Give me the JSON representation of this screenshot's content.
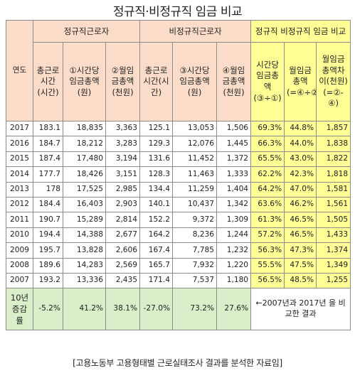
{
  "title": "정규직·비정규직 임금 비교",
  "headers": {
    "year": "연도",
    "group_regular": "정규직근로자",
    "group_nonregular": "비정규직근로자",
    "group_compare": "정규직 비정규직 임금 비교",
    "reg_hours": "총근로시간(시간)",
    "reg_hourly": "①시간당 임금총액(원)",
    "reg_monthly": "②월임금총액(천원)",
    "non_hours": "총근로시간(시간)",
    "non_hourly": "③시간당 임금총액(원)",
    "non_monthly": "④월임금총액(천원)",
    "cmp_hourly": "시간당임금총액(③÷①)",
    "cmp_monthly": "월임금 총액(=④÷②)",
    "cmp_diff": "월임금총액차이(천원)(=②-④)"
  },
  "rows": [
    {
      "year": "2017",
      "reg_hours": "183.1",
      "reg_hourly": "18,835",
      "reg_monthly": "3,363",
      "non_hours": "125.1",
      "non_hourly": "13,053",
      "non_monthly": "1,506",
      "cmp_hourly": "69.3%",
      "cmp_monthly": "44.8%",
      "cmp_diff": "1,857"
    },
    {
      "year": "2016",
      "reg_hours": "184.7",
      "reg_hourly": "18,212",
      "reg_monthly": "3,283",
      "non_hours": "129.3",
      "non_hourly": "12,076",
      "non_monthly": "1,445",
      "cmp_hourly": "66.3%",
      "cmp_monthly": "44.0%",
      "cmp_diff": "1,838"
    },
    {
      "year": "2015",
      "reg_hours": "187.4",
      "reg_hourly": "17,480",
      "reg_monthly": "3,194",
      "non_hours": "131.6",
      "non_hourly": "11,452",
      "non_monthly": "1,372",
      "cmp_hourly": "65.5%",
      "cmp_monthly": "43.0%",
      "cmp_diff": "1,822"
    },
    {
      "year": "2014",
      "reg_hours": "177.7",
      "reg_hourly": "18,426",
      "reg_monthly": "3,151",
      "non_hours": "128.3",
      "non_hourly": "11,463",
      "non_monthly": "1,333",
      "cmp_hourly": "62.2%",
      "cmp_monthly": "42.3%",
      "cmp_diff": "1,818"
    },
    {
      "year": "2013",
      "reg_hours": "178",
      "reg_hourly": "17,525",
      "reg_monthly": "2,985",
      "non_hours": "134.4",
      "non_hourly": "11,259",
      "non_monthly": "1,404",
      "cmp_hourly": "64.2%",
      "cmp_monthly": "47.0%",
      "cmp_diff": "1,581"
    },
    {
      "year": "2012",
      "reg_hours": "184.4",
      "reg_hourly": "16,403",
      "reg_monthly": "2,903",
      "non_hours": "140.1",
      "non_hourly": "10,437",
      "non_monthly": "1,342",
      "cmp_hourly": "63.6%",
      "cmp_monthly": "46.2%",
      "cmp_diff": "1,561"
    },
    {
      "year": "2011",
      "reg_hours": "190.7",
      "reg_hourly": "15,289",
      "reg_monthly": "2,814",
      "non_hours": "152.2",
      "non_hourly": "9,372",
      "non_monthly": "1,309",
      "cmp_hourly": "61.3%",
      "cmp_monthly": "46.5%",
      "cmp_diff": "1,505"
    },
    {
      "year": "2010",
      "reg_hours": "194.4",
      "reg_hourly": "14,388",
      "reg_monthly": "2,677",
      "non_hours": "164.2",
      "non_hourly": "8,236",
      "non_monthly": "1,244",
      "cmp_hourly": "57.2%",
      "cmp_monthly": "46.5%",
      "cmp_diff": "1,433"
    },
    {
      "year": "2009",
      "reg_hours": "195.7",
      "reg_hourly": "13,828",
      "reg_monthly": "2,606",
      "non_hours": "167.4",
      "non_hourly": "7,785",
      "non_monthly": "1,232",
      "cmp_hourly": "56.3%",
      "cmp_monthly": "47.3%",
      "cmp_diff": "1,374"
    },
    {
      "year": "2008",
      "reg_hours": "189.6",
      "reg_hourly": "14,283",
      "reg_monthly": "2,569",
      "non_hours": "165.7",
      "non_hourly": "7,932",
      "non_monthly": "1,220",
      "cmp_hourly": "55.5%",
      "cmp_monthly": "47.5%",
      "cmp_diff": "1,349"
    },
    {
      "year": "2007",
      "reg_hours": "193.2",
      "reg_hourly": "13,336",
      "reg_monthly": "2,435",
      "non_hours": "171.4",
      "non_hourly": "7,537",
      "non_monthly": "1,180",
      "cmp_hourly": "56.5%",
      "cmp_monthly": "48.5%",
      "cmp_diff": "1,255"
    }
  ],
  "summary": {
    "label": "10년 증감률",
    "reg_hours": "-5.2%",
    "reg_hourly": "41.2%",
    "reg_monthly": "38.1%",
    "non_hours": "-27.0%",
    "non_hourly": "73.2%",
    "non_monthly": "27.6%",
    "note": "←2007년과 2017년 을 비교한 결과"
  },
  "footer": "[고용노동부 고용형태별 근로실태조사 결과를 분석한 자료임]",
  "colors": {
    "header_peach": "#fadcc8",
    "compare_yellow": "#ffff96",
    "summary_green": "#d9eec9",
    "border_gray": "#8c8c8c"
  }
}
